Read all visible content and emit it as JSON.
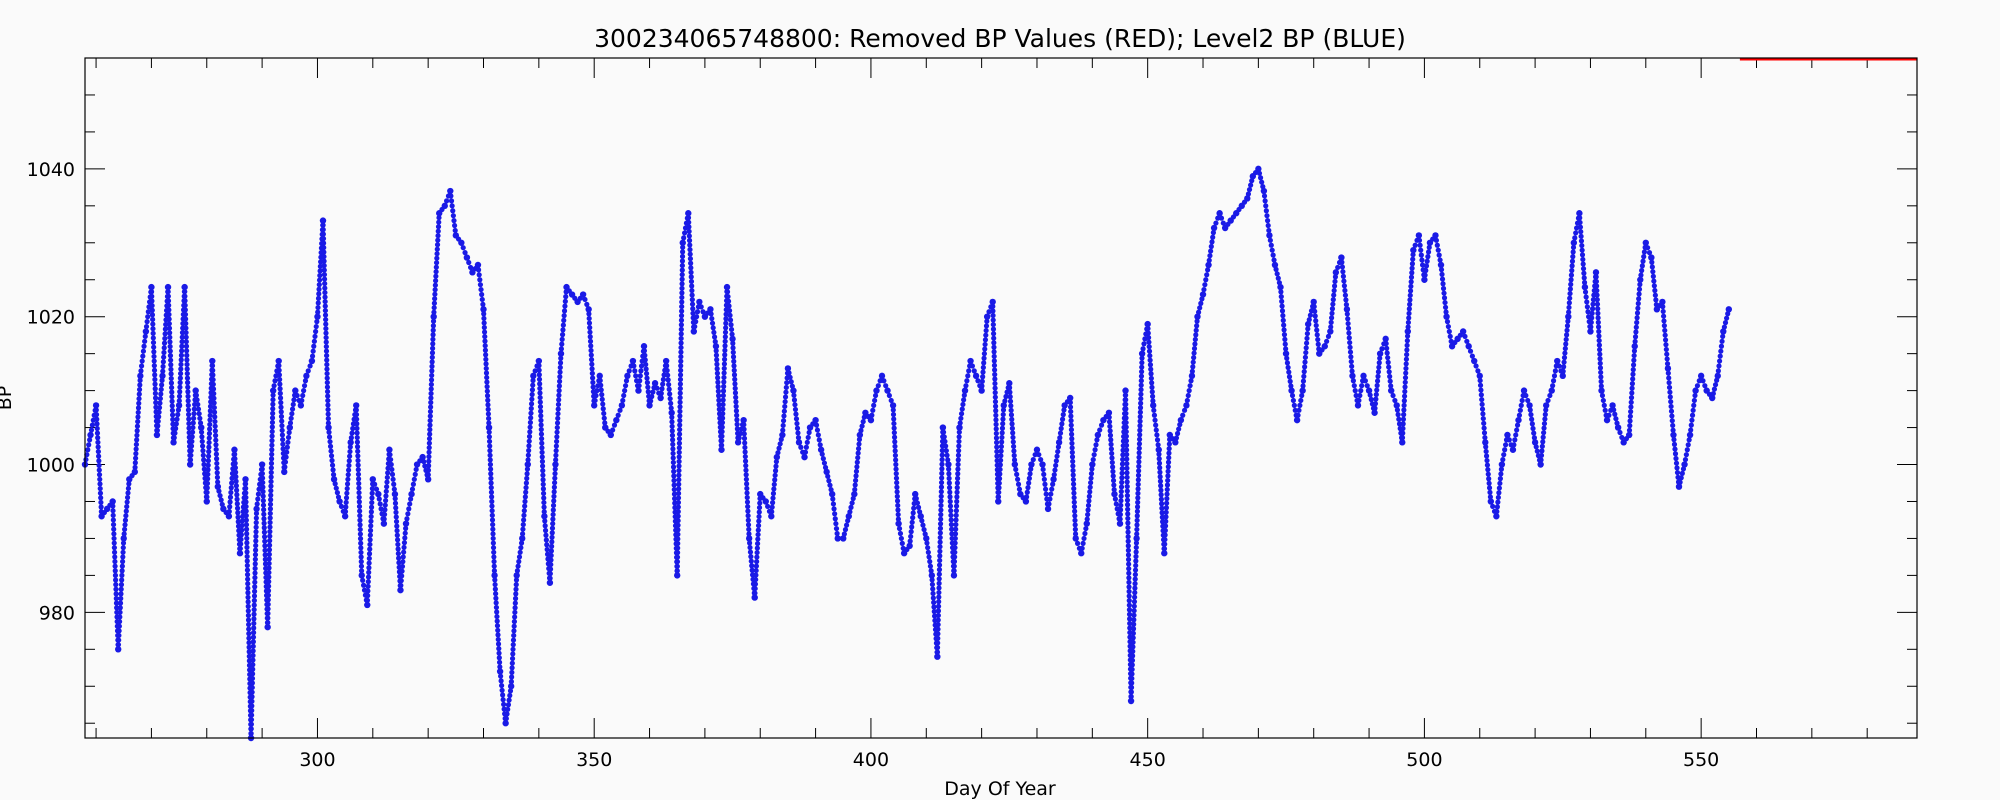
{
  "chart_data": {
    "type": "scatter",
    "title": "300234065748800: Removed BP Values (RED); Level2 BP (BLUE)",
    "xlabel": "Day Of Year",
    "ylabel": "BP",
    "xlim": [
      258,
      589
    ],
    "ylim": [
      963,
      1055
    ],
    "x_ticks": [
      300,
      350,
      400,
      450,
      500,
      550
    ],
    "y_ticks": [
      980,
      1000,
      1020,
      1040
    ],
    "grid": false,
    "series": [
      {
        "color": "#1a1ae6",
        "points": [
          [
            258,
            1000
          ],
          [
            259,
            1004
          ],
          [
            260,
            1008
          ],
          [
            261,
            993
          ],
          [
            262,
            994
          ],
          [
            263,
            995
          ],
          [
            264,
            975
          ],
          [
            265,
            990
          ],
          [
            266,
            998
          ],
          [
            267,
            999
          ],
          [
            268,
            1012
          ],
          [
            269,
            1018
          ],
          [
            270,
            1024
          ],
          [
            271,
            1004
          ],
          [
            272,
            1012
          ],
          [
            273,
            1024
          ],
          [
            274,
            1003
          ],
          [
            275,
            1008
          ],
          [
            276,
            1024
          ],
          [
            277,
            1000
          ],
          [
            278,
            1010
          ],
          [
            279,
            1005
          ],
          [
            280,
            995
          ],
          [
            281,
            1014
          ],
          [
            282,
            997
          ],
          [
            283,
            994
          ],
          [
            284,
            993
          ],
          [
            285,
            1002
          ],
          [
            286,
            988
          ],
          [
            287,
            998
          ],
          [
            288,
            963
          ],
          [
            289,
            994
          ],
          [
            290,
            1000
          ],
          [
            291,
            978
          ],
          [
            292,
            1010
          ],
          [
            293,
            1014
          ],
          [
            294,
            999
          ],
          [
            295,
            1005
          ],
          [
            296,
            1010
          ],
          [
            297,
            1008
          ],
          [
            298,
            1012
          ],
          [
            299,
            1014
          ],
          [
            300,
            1020
          ],
          [
            301,
            1033
          ],
          [
            302,
            1005
          ],
          [
            303,
            998
          ],
          [
            304,
            995
          ],
          [
            305,
            993
          ],
          [
            306,
            1003
          ],
          [
            307,
            1008
          ],
          [
            308,
            985
          ],
          [
            309,
            981
          ],
          [
            310,
            998
          ],
          [
            311,
            996
          ],
          [
            312,
            992
          ],
          [
            313,
            1002
          ],
          [
            314,
            996
          ],
          [
            315,
            983
          ],
          [
            316,
            992
          ],
          [
            317,
            996
          ],
          [
            318,
            1000
          ],
          [
            319,
            1001
          ],
          [
            320,
            998
          ],
          [
            321,
            1020
          ],
          [
            322,
            1034
          ],
          [
            323,
            1035
          ],
          [
            324,
            1037
          ],
          [
            325,
            1031
          ],
          [
            326,
            1030
          ],
          [
            327,
            1028
          ],
          [
            328,
            1026
          ],
          [
            329,
            1027
          ],
          [
            330,
            1021
          ],
          [
            331,
            1005
          ],
          [
            332,
            985
          ],
          [
            333,
            972
          ],
          [
            334,
            965
          ],
          [
            335,
            970
          ],
          [
            336,
            985
          ],
          [
            337,
            990
          ],
          [
            338,
            1000
          ],
          [
            339,
            1012
          ],
          [
            340,
            1014
          ],
          [
            341,
            993
          ],
          [
            342,
            984
          ],
          [
            343,
            1000
          ],
          [
            344,
            1015
          ],
          [
            345,
            1024
          ],
          [
            346,
            1023
          ],
          [
            347,
            1022
          ],
          [
            348,
            1023
          ],
          [
            349,
            1021
          ],
          [
            350,
            1008
          ],
          [
            351,
            1012
          ],
          [
            352,
            1005
          ],
          [
            353,
            1004
          ],
          [
            354,
            1006
          ],
          [
            355,
            1008
          ],
          [
            356,
            1012
          ],
          [
            357,
            1014
          ],
          [
            358,
            1010
          ],
          [
            359,
            1016
          ],
          [
            360,
            1008
          ],
          [
            361,
            1011
          ],
          [
            362,
            1009
          ],
          [
            363,
            1014
          ],
          [
            364,
            1007
          ],
          [
            365,
            985
          ],
          [
            366,
            1030
          ],
          [
            367,
            1034
          ],
          [
            368,
            1018
          ],
          [
            369,
            1022
          ],
          [
            370,
            1020
          ],
          [
            371,
            1021
          ],
          [
            372,
            1016
          ],
          [
            373,
            1002
          ],
          [
            374,
            1024
          ],
          [
            375,
            1017
          ],
          [
            376,
            1003
          ],
          [
            377,
            1006
          ],
          [
            378,
            990
          ],
          [
            379,
            982
          ],
          [
            380,
            996
          ],
          [
            381,
            995
          ],
          [
            382,
            993
          ],
          [
            383,
            1001
          ],
          [
            384,
            1004
          ],
          [
            385,
            1013
          ],
          [
            386,
            1010
          ],
          [
            387,
            1003
          ],
          [
            388,
            1001
          ],
          [
            389,
            1005
          ],
          [
            390,
            1006
          ],
          [
            391,
            1002
          ],
          [
            392,
            999
          ],
          [
            393,
            996
          ],
          [
            394,
            990
          ],
          [
            395,
            990
          ],
          [
            396,
            993
          ],
          [
            397,
            996
          ],
          [
            398,
            1004
          ],
          [
            399,
            1007
          ],
          [
            400,
            1006
          ],
          [
            401,
            1010
          ],
          [
            402,
            1012
          ],
          [
            403,
            1010
          ],
          [
            404,
            1008
          ],
          [
            405,
            992
          ],
          [
            406,
            988
          ],
          [
            407,
            989
          ],
          [
            408,
            996
          ],
          [
            409,
            993
          ],
          [
            410,
            990
          ],
          [
            411,
            985
          ],
          [
            412,
            974
          ],
          [
            413,
            1005
          ],
          [
            414,
            1000
          ],
          [
            415,
            985
          ],
          [
            416,
            1005
          ],
          [
            417,
            1010
          ],
          [
            418,
            1014
          ],
          [
            419,
            1012
          ],
          [
            420,
            1010
          ],
          [
            421,
            1020
          ],
          [
            422,
            1022
          ],
          [
            423,
            995
          ],
          [
            424,
            1008
          ],
          [
            425,
            1011
          ],
          [
            426,
            1000
          ],
          [
            427,
            996
          ],
          [
            428,
            995
          ],
          [
            429,
            1000
          ],
          [
            430,
            1002
          ],
          [
            431,
            1000
          ],
          [
            432,
            994
          ],
          [
            433,
            998
          ],
          [
            434,
            1003
          ],
          [
            435,
            1008
          ],
          [
            436,
            1009
          ],
          [
            437,
            990
          ],
          [
            438,
            988
          ],
          [
            439,
            992
          ],
          [
            440,
            1000
          ],
          [
            441,
            1004
          ],
          [
            442,
            1006
          ],
          [
            443,
            1007
          ],
          [
            444,
            996
          ],
          [
            445,
            992
          ],
          [
            446,
            1010
          ],
          [
            447,
            968
          ],
          [
            448,
            990
          ],
          [
            449,
            1015
          ],
          [
            450,
            1019
          ],
          [
            451,
            1008
          ],
          [
            452,
            1002
          ],
          [
            453,
            988
          ],
          [
            454,
            1004
          ],
          [
            455,
            1003
          ],
          [
            456,
            1006
          ],
          [
            457,
            1008
          ],
          [
            458,
            1012
          ],
          [
            459,
            1020
          ],
          [
            460,
            1023
          ],
          [
            461,
            1027
          ],
          [
            462,
            1032
          ],
          [
            463,
            1034
          ],
          [
            464,
            1032
          ],
          [
            465,
            1033
          ],
          [
            466,
            1034
          ],
          [
            467,
            1035
          ],
          [
            468,
            1036
          ],
          [
            469,
            1039
          ],
          [
            470,
            1040
          ],
          [
            471,
            1037
          ],
          [
            472,
            1031
          ],
          [
            473,
            1027
          ],
          [
            474,
            1024
          ],
          [
            475,
            1015
          ],
          [
            476,
            1010
          ],
          [
            477,
            1006
          ],
          [
            478,
            1010
          ],
          [
            479,
            1019
          ],
          [
            480,
            1022
          ],
          [
            481,
            1015
          ],
          [
            482,
            1016
          ],
          [
            483,
            1018
          ],
          [
            484,
            1026
          ],
          [
            485,
            1028
          ],
          [
            486,
            1021
          ],
          [
            487,
            1012
          ],
          [
            488,
            1008
          ],
          [
            489,
            1012
          ],
          [
            490,
            1010
          ],
          [
            491,
            1007
          ],
          [
            492,
            1015
          ],
          [
            493,
            1017
          ],
          [
            494,
            1010
          ],
          [
            495,
            1008
          ],
          [
            496,
            1003
          ],
          [
            497,
            1018
          ],
          [
            498,
            1029
          ],
          [
            499,
            1031
          ],
          [
            500,
            1025
          ],
          [
            501,
            1030
          ],
          [
            502,
            1031
          ],
          [
            503,
            1027
          ],
          [
            504,
            1020
          ],
          [
            505,
            1016
          ],
          [
            506,
            1017
          ],
          [
            507,
            1018
          ],
          [
            508,
            1016
          ],
          [
            509,
            1014
          ],
          [
            510,
            1012
          ],
          [
            511,
            1003
          ],
          [
            512,
            995
          ],
          [
            513,
            993
          ],
          [
            514,
            1000
          ],
          [
            515,
            1004
          ],
          [
            516,
            1002
          ],
          [
            517,
            1006
          ],
          [
            518,
            1010
          ],
          [
            519,
            1008
          ],
          [
            520,
            1003
          ],
          [
            521,
            1000
          ],
          [
            522,
            1008
          ],
          [
            523,
            1010
          ],
          [
            524,
            1014
          ],
          [
            525,
            1012
          ],
          [
            526,
            1020
          ],
          [
            527,
            1030
          ],
          [
            528,
            1034
          ],
          [
            529,
            1024
          ],
          [
            530,
            1018
          ],
          [
            531,
            1026
          ],
          [
            532,
            1010
          ],
          [
            533,
            1006
          ],
          [
            534,
            1008
          ],
          [
            535,
            1005
          ],
          [
            536,
            1003
          ],
          [
            537,
            1004
          ],
          [
            538,
            1016
          ],
          [
            539,
            1025
          ],
          [
            540,
            1030
          ],
          [
            541,
            1028
          ],
          [
            542,
            1021
          ],
          [
            543,
            1022
          ],
          [
            544,
            1013
          ],
          [
            545,
            1004
          ],
          [
            546,
            997
          ],
          [
            547,
            1000
          ],
          [
            548,
            1004
          ],
          [
            549,
            1010
          ],
          [
            550,
            1012
          ],
          [
            551,
            1010
          ],
          [
            552,
            1009
          ],
          [
            553,
            1012
          ],
          [
            554,
            1018
          ],
          [
            555,
            1021
          ]
        ]
      },
      {
        "color": "#ff0000",
        "segments": [
          [
            [
              557,
              1055
            ],
            [
              589,
              1055
            ]
          ]
        ]
      }
    ]
  }
}
